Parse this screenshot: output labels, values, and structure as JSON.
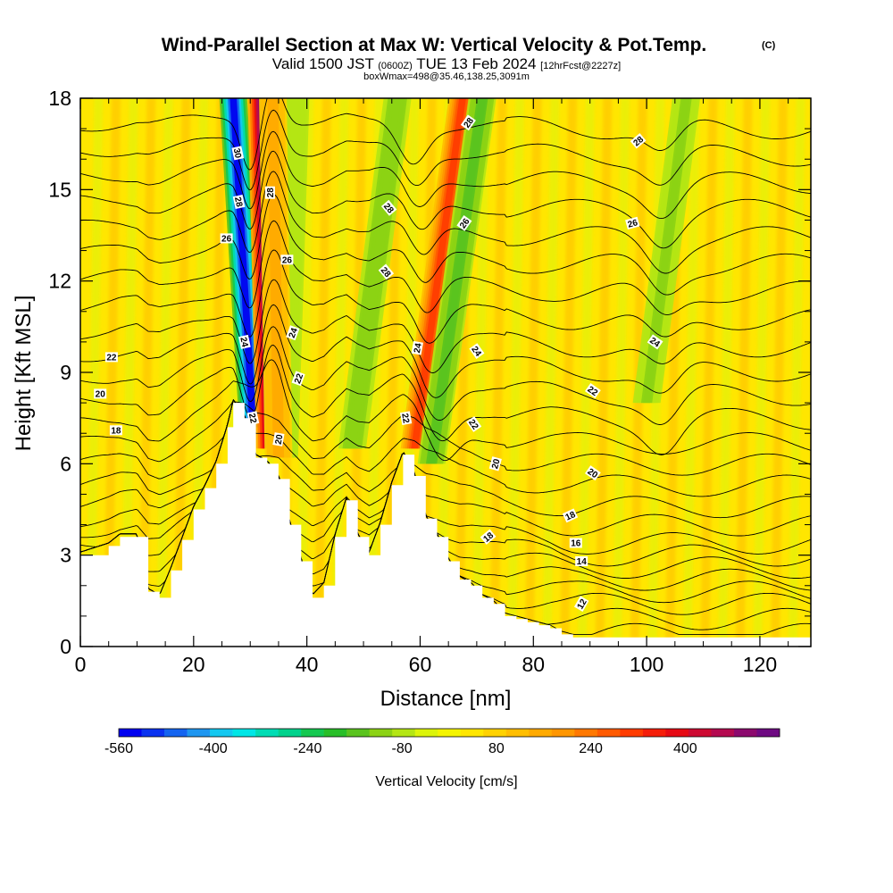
{
  "header": {
    "title": "Wind-Parallel Section at Max W: Vertical Velocity & Pot.Temp.",
    "title_mark": "(C)",
    "valid_prefix": "Valid 1500 JST",
    "valid_utc": "(0600Z)",
    "valid_date": "TUE 13 Feb 2024",
    "forecast": "[12hrFcst@2227z]",
    "box_info": "boxWmax=498@35.46,138.25,3091m"
  },
  "chart_data": {
    "type": "heatmap",
    "xlabel": "Distance [nm]",
    "ylabel": "Height [Kft MSL]",
    "xlim": [
      0,
      129
    ],
    "ylim": [
      0,
      18
    ],
    "x_ticks": [
      0,
      20,
      40,
      60,
      80,
      100,
      120
    ],
    "y_ticks": [
      0,
      3,
      6,
      9,
      12,
      15,
      18
    ],
    "terrain": {
      "x": [
        0,
        5,
        7,
        10,
        12,
        14,
        16,
        18,
        20,
        22,
        24,
        26,
        27,
        29,
        31,
        33,
        35,
        37,
        39,
        41,
        43,
        45,
        47,
        49,
        51,
        53,
        55,
        57,
        59,
        61,
        63,
        65,
        67,
        69,
        71,
        73,
        75,
        77,
        79,
        81,
        83,
        85,
        87,
        90,
        95,
        100,
        110,
        120,
        129
      ],
      "y": [
        3.0,
        3.3,
        3.6,
        3.6,
        1.8,
        1.6,
        2.5,
        3.5,
        4.5,
        5.2,
        6.0,
        7.2,
        8.0,
        7.5,
        6.2,
        6.0,
        5.5,
        4.0,
        2.8,
        1.6,
        2.0,
        3.6,
        4.8,
        3.6,
        3.0,
        4.0,
        5.3,
        6.3,
        5.6,
        4.2,
        3.6,
        2.8,
        2.2,
        2.0,
        1.6,
        1.4,
        1.0,
        0.9,
        0.8,
        0.7,
        0.6,
        0.4,
        0.3,
        0.3,
        0.3,
        0.3,
        0.3,
        0.3,
        0.3
      ]
    },
    "colorbar": {
      "label": "Vertical Velocity [cm/s]",
      "min": -560,
      "max": 560,
      "tick_values": [
        -560,
        -400,
        -240,
        -80,
        80,
        240,
        400
      ],
      "tick_labels": [
        "-560",
        "-400",
        "-240",
        "-80",
        "80",
        "240",
        "400"
      ],
      "colors": [
        "#0000f0",
        "#0a32f0",
        "#1464f0",
        "#1e96f0",
        "#14c8f0",
        "#00e6e6",
        "#00dcb4",
        "#00d28c",
        "#14c850",
        "#28be28",
        "#5ac31e",
        "#8cd214",
        "#b4e614",
        "#dcf50a",
        "#f5f500",
        "#ffe600",
        "#ffd200",
        "#ffbe00",
        "#ffaa00",
        "#ff9600",
        "#ff7800",
        "#ff5a00",
        "#ff3c00",
        "#f51e0a",
        "#e60a14",
        "#cd0a32",
        "#b40a50",
        "#8c0a6e",
        "#6e0a82"
      ]
    },
    "velocity_features": [
      {
        "kind": "downdraft",
        "value": -560,
        "x_top": 27,
        "x_bottom": 30.5,
        "y_bottom": 7.2
      },
      {
        "kind": "updraft",
        "value": 520,
        "x_top": 32,
        "x_bottom": 33.5,
        "y_bottom": 6.5
      },
      {
        "kind": "updraft",
        "value": 300,
        "x_top": 67.5,
        "x_bottom": 59,
        "y_bottom": 6.5
      },
      {
        "kind": "downdraft",
        "value": -160,
        "x_top": 71,
        "x_bottom": 62,
        "y_bottom": 6.0
      },
      {
        "kind": "downdraft",
        "value": -120,
        "x_top": 56,
        "x_bottom": 48,
        "y_bottom": 6.5
      },
      {
        "kind": "downdraft",
        "value": -100,
        "x_top": 107,
        "x_bottom": 100,
        "y_bottom": 8.0
      },
      {
        "kind": "downdraft",
        "value": -70,
        "x_top": 38,
        "x_bottom": 36,
        "y_bottom": 6.2
      },
      {
        "kind": "updraft",
        "value": 150,
        "x_top": 34,
        "x_bottom": 35,
        "y_bottom": 6.2
      }
    ],
    "pot_temp_contours": {
      "levels": [
        8,
        9,
        10,
        11,
        12,
        13,
        14,
        15,
        16,
        17,
        18,
        19,
        20,
        21,
        22,
        23,
        24,
        25,
        26,
        27,
        28,
        29,
        30,
        31,
        32
      ],
      "base_heights": [
        0.3,
        0.8,
        1.3,
        1.7,
        2.1,
        2.5,
        2.9,
        3.3,
        3.9,
        4.5,
        5.2,
        5.9,
        6.6,
        7.4,
        8.2,
        9.0,
        9.8,
        10.7,
        11.6,
        12.5,
        13.4,
        14.3,
        15.2,
        16.1,
        17.0
      ]
    },
    "contour_labels": [
      {
        "text": "30",
        "x": 27.8,
        "y": 16.2,
        "rotate": 78
      },
      {
        "text": "28",
        "x": 28.0,
        "y": 14.6,
        "rotate": 78
      },
      {
        "text": "26",
        "x": 25.8,
        "y": 13.4,
        "rotate": 0
      },
      {
        "text": "28",
        "x": 33.5,
        "y": 14.9,
        "rotate": -90
      },
      {
        "text": "26",
        "x": 36.5,
        "y": 12.7,
        "rotate": 0
      },
      {
        "text": "24",
        "x": 29.0,
        "y": 10.0,
        "rotate": 78
      },
      {
        "text": "24",
        "x": 37.5,
        "y": 10.3,
        "rotate": -70
      },
      {
        "text": "22",
        "x": 38.5,
        "y": 8.8,
        "rotate": -70
      },
      {
        "text": "22",
        "x": 30.5,
        "y": 7.5,
        "rotate": 78
      },
      {
        "text": "20",
        "x": 35.0,
        "y": 6.8,
        "rotate": -80
      },
      {
        "text": "22",
        "x": 5.5,
        "y": 9.5,
        "rotate": 0
      },
      {
        "text": "20",
        "x": 3.5,
        "y": 8.3,
        "rotate": 0
      },
      {
        "text": "18",
        "x": 6.3,
        "y": 7.1,
        "rotate": 0
      },
      {
        "text": "28",
        "x": 54.5,
        "y": 14.4,
        "rotate": 50
      },
      {
        "text": "28",
        "x": 54.0,
        "y": 12.3,
        "rotate": 50
      },
      {
        "text": "28",
        "x": 68.5,
        "y": 17.2,
        "rotate": -55
      },
      {
        "text": "26",
        "x": 67.8,
        "y": 13.9,
        "rotate": -55
      },
      {
        "text": "24",
        "x": 59.5,
        "y": 9.8,
        "rotate": -80
      },
      {
        "text": "24",
        "x": 70.0,
        "y": 9.7,
        "rotate": 55
      },
      {
        "text": "22",
        "x": 57.5,
        "y": 7.5,
        "rotate": 80
      },
      {
        "text": "22",
        "x": 69.5,
        "y": 7.3,
        "rotate": 55
      },
      {
        "text": "20",
        "x": 73.3,
        "y": 6.0,
        "rotate": -75
      },
      {
        "text": "18",
        "x": 72.0,
        "y": 3.6,
        "rotate": -40
      },
      {
        "text": "28",
        "x": 98.5,
        "y": 16.6,
        "rotate": -40
      },
      {
        "text": "26",
        "x": 97.5,
        "y": 13.9,
        "rotate": -15
      },
      {
        "text": "24",
        "x": 101.5,
        "y": 10.0,
        "rotate": 35
      },
      {
        "text": "22",
        "x": 90.5,
        "y": 8.4,
        "rotate": 35
      },
      {
        "text": "20",
        "x": 90.5,
        "y": 5.7,
        "rotate": 35
      },
      {
        "text": "18",
        "x": 86.5,
        "y": 4.3,
        "rotate": -25
      },
      {
        "text": "16",
        "x": 87.5,
        "y": 3.4,
        "rotate": 0
      },
      {
        "text": "14",
        "x": 88.5,
        "y": 2.8,
        "rotate": 0
      },
      {
        "text": "12",
        "x": 88.5,
        "y": 1.4,
        "rotate": -60
      }
    ]
  },
  "colors": {
    "background": "#ffe600",
    "contour": "#000000",
    "terrain": "#ffffff"
  }
}
